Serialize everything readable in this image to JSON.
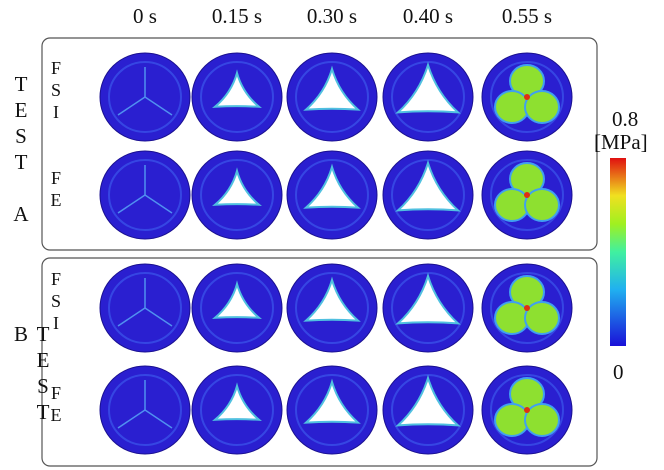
{
  "columns": [
    "0 s",
    "0.15 s",
    "0.30 s",
    "0.40 s",
    "0.55 s"
  ],
  "tests": [
    {
      "label": "TEST A",
      "rows": [
        {
          "label": "FSI"
        },
        {
          "label": "FE"
        }
      ]
    },
    {
      "label": "TEST B",
      "rows": [
        {
          "label": "FSI"
        },
        {
          "label": "FE"
        }
      ]
    }
  ],
  "colorbar": {
    "max": 0.8,
    "unit": "[MPa]",
    "min": 0
  }
}
